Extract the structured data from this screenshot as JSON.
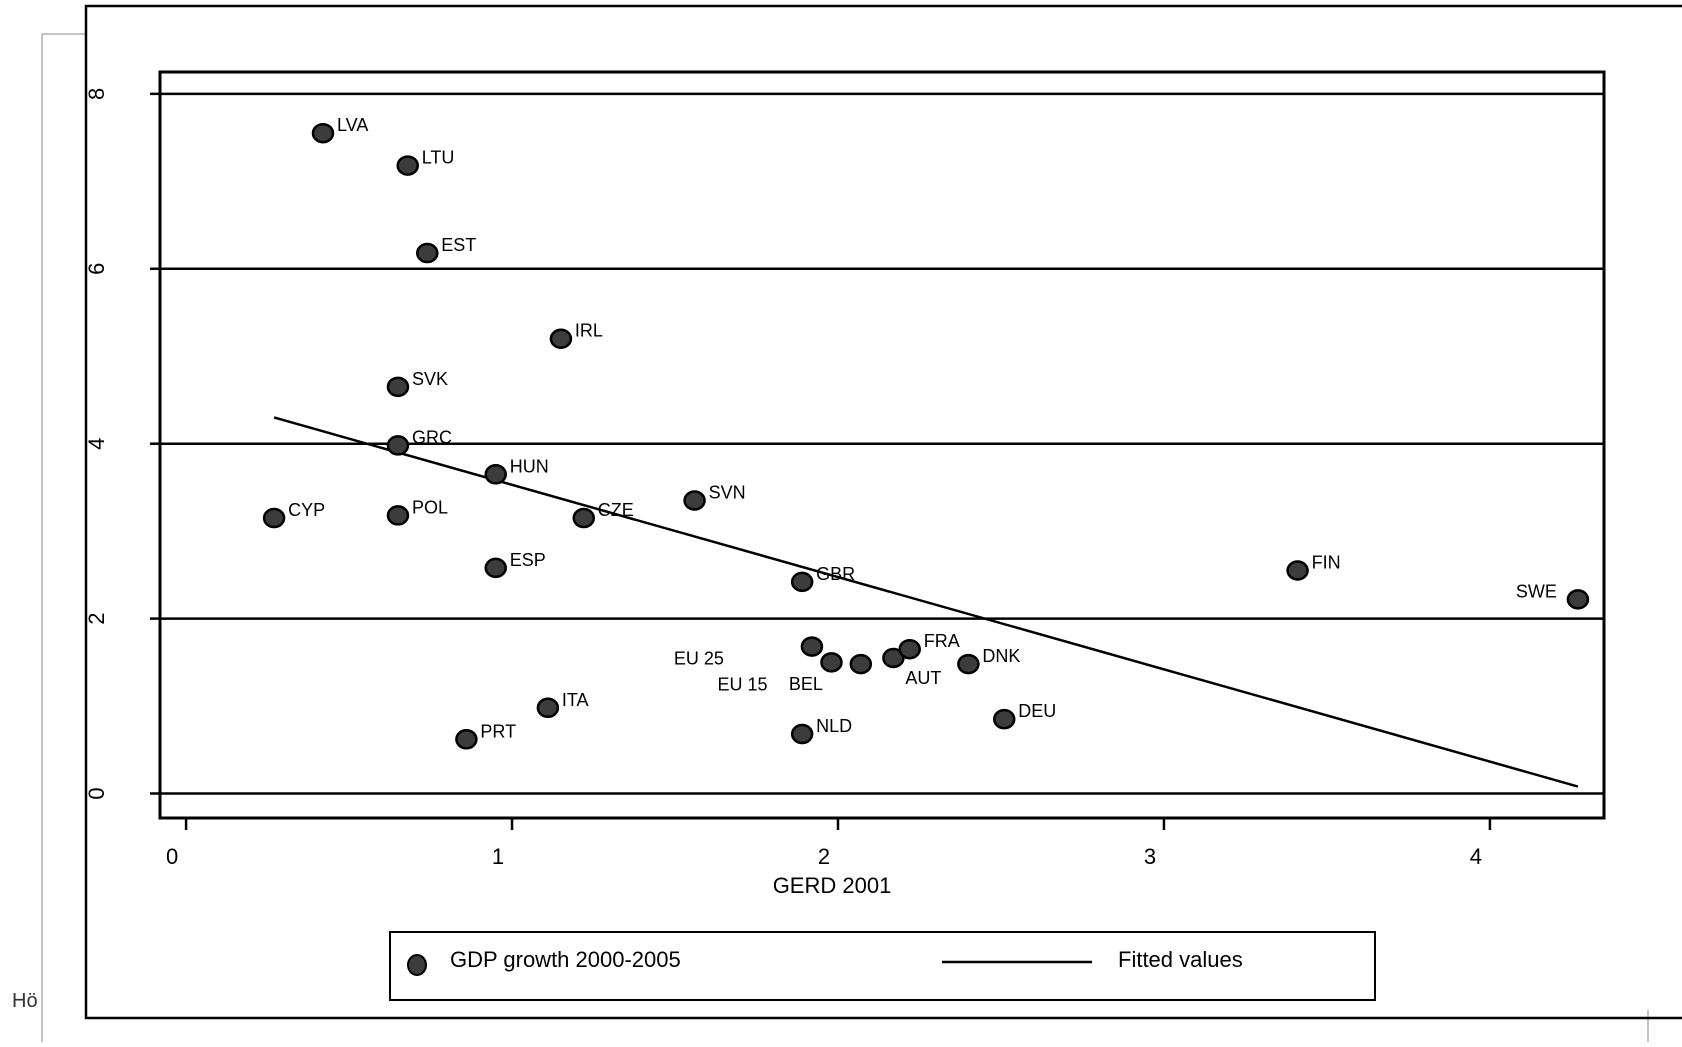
{
  "page": {
    "edge_text": "Hö"
  },
  "chart_data": {
    "type": "scatter",
    "title": "",
    "xlabel": "GERD 2001",
    "ylabel": "",
    "xlim": [
      -0.08,
      4.35
    ],
    "ylim": [
      -0.28,
      8.25
    ],
    "x_ticks": [
      0,
      1,
      2,
      3,
      4
    ],
    "x_tick_labels": [
      "0",
      "1",
      "2",
      "3",
      "4"
    ],
    "y_ticks": [
      0,
      2,
      4,
      6,
      8
    ],
    "y_tick_labels": [
      "0",
      "2",
      "4",
      "6",
      "8"
    ],
    "grid": "horizontal lines at y ticks",
    "legend": {
      "placement": "bottom",
      "entries": [
        "GDP growth 2000-2005",
        "Fitted values"
      ]
    },
    "colors": {
      "marker_fill": "#3c3c3c",
      "marker_stroke": "#000000",
      "line": "#000000"
    },
    "series": [
      {
        "name": "GDP growth 2000-2005",
        "kind": "scatter",
        "points": [
          {
            "label": "LVA",
            "x": 0.42,
            "y": 7.55
          },
          {
            "label": "LTU",
            "x": 0.68,
            "y": 7.18
          },
          {
            "label": "EST",
            "x": 0.74,
            "y": 6.18
          },
          {
            "label": "IRL",
            "x": 1.15,
            "y": 5.2
          },
          {
            "label": "SVK",
            "x": 0.65,
            "y": 4.65
          },
          {
            "label": "GRC",
            "x": 0.65,
            "y": 3.98
          },
          {
            "label": "HUN",
            "x": 0.95,
            "y": 3.65
          },
          {
            "label": "SVN",
            "x": 1.56,
            "y": 3.35
          },
          {
            "label": "CYP",
            "x": 0.27,
            "y": 3.15
          },
          {
            "label": "POL",
            "x": 0.65,
            "y": 3.18
          },
          {
            "label": "CZE",
            "x": 1.22,
            "y": 3.15
          },
          {
            "label": "ESP",
            "x": 0.95,
            "y": 2.58
          },
          {
            "label": "GBR",
            "x": 1.89,
            "y": 2.42
          },
          {
            "label": "FIN",
            "x": 3.41,
            "y": 2.55
          },
          {
            "label": "SWE",
            "x": 4.27,
            "y": 2.22
          },
          {
            "label": "EU 25",
            "x": 1.92,
            "y": 1.68
          },
          {
            "label": "EU 15",
            "x": 1.98,
            "y": 1.5
          },
          {
            "label": "BEL",
            "x": 2.07,
            "y": 1.48
          },
          {
            "label": "AUT",
            "x": 2.17,
            "y": 1.55
          },
          {
            "label": "FRA",
            "x": 2.22,
            "y": 1.65
          },
          {
            "label": "DNK",
            "x": 2.4,
            "y": 1.48
          },
          {
            "label": "ITA",
            "x": 1.11,
            "y": 0.98
          },
          {
            "label": "NLD",
            "x": 1.89,
            "y": 0.68
          },
          {
            "label": "DEU",
            "x": 2.51,
            "y": 0.85
          },
          {
            "label": "PRT",
            "x": 0.86,
            "y": 0.62
          }
        ]
      },
      {
        "name": "Fitted values",
        "kind": "line",
        "points": [
          {
            "x": 0.27,
            "y": 4.3
          },
          {
            "x": 4.27,
            "y": 0.08
          }
        ]
      }
    ]
  }
}
